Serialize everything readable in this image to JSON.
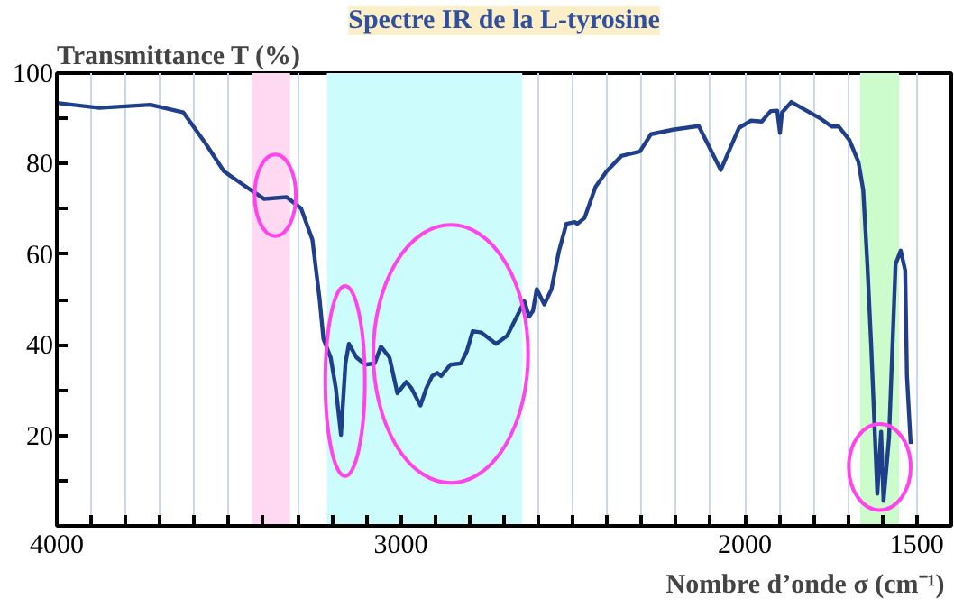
{
  "chart_data": {
    "type": "line",
    "title": "Spectre IR de la L-tyrosine",
    "xlabel": "Nombre d’onde σ  (cm⁻¹)",
    "ylabel": "Transmittance T (%)",
    "x": [
      4000,
      3876,
      3728,
      3632,
      3568,
      3514,
      3450,
      3397,
      3332,
      3290,
      3257,
      3236,
      3225,
      3204,
      3189,
      3174,
      3161,
      3151,
      3129,
      3103,
      3076,
      3058,
      3033,
      3010,
      2984,
      2969,
      2943,
      2926,
      2909,
      2894,
      2883,
      2856,
      2825,
      2808,
      2791,
      2766,
      2723,
      2691,
      2659,
      2641,
      2627,
      2616,
      2605,
      2583,
      2562,
      2541,
      2519,
      2494,
      2487,
      2466,
      2434,
      2402,
      2359,
      2305,
      2273,
      2209,
      2134,
      2070,
      2017,
      1982,
      1951,
      1925,
      1906,
      1898,
      1892,
      1865,
      1821,
      1779,
      1748,
      1727,
      1696,
      1670,
      1656,
      1644,
      1633,
      1621,
      1615,
      1604,
      1597,
      1581,
      1562,
      1547,
      1534,
      1529,
      1518
    ],
    "series": [
      {
        "color": "#1f3f8a",
        "values": [
          93.4,
          92.3,
          93.0,
          91.3,
          84.5,
          78.3,
          74.9,
          72.2,
          72.6,
          70.1,
          63.2,
          50,
          41.3,
          37.2,
          30.4,
          20.1,
          35.9,
          40.2,
          37.2,
          35.6,
          35.9,
          39.6,
          37.2,
          29.3,
          31.8,
          30.4,
          26.6,
          30.4,
          33.1,
          33.8,
          33.1,
          35.6,
          35.9,
          38.6,
          43.0,
          42.7,
          40.2,
          42.0,
          46.8,
          49.6,
          46.2,
          47.5,
          52.3,
          48.9,
          52.3,
          60.5,
          66.7,
          67.1,
          66.7,
          68.0,
          74.9,
          78.3,
          81.7,
          82.7,
          86.5,
          87.5,
          88.3,
          78.6,
          87.9,
          89.5,
          89.3,
          91.6,
          91.7,
          86.8,
          91.3,
          93.6,
          91.7,
          89.9,
          88.2,
          88.2,
          85.2,
          80.4,
          74.2,
          57.8,
          40.0,
          18.1,
          7.1,
          20.8,
          5.5,
          19.5,
          57.8,
          60.8,
          56.4,
          33.1,
          18.1
        ]
      }
    ],
    "xlim": [
      4000,
      1400
    ],
    "xticks": [
      4000,
      {
        "value": 3900,
        "label": null
      },
      {
        "value": 3800,
        "label": null
      },
      {
        "value": 3700,
        "label": null
      },
      {
        "value": 3600,
        "label": null
      },
      {
        "value": 3500,
        "label": null
      },
      {
        "value": 3400,
        "label": null
      },
      {
        "value": 3300,
        "label": null
      },
      {
        "value": 3200,
        "label": null
      },
      {
        "value": 3100,
        "label": null
      },
      3000,
      {
        "value": 2900,
        "label": null
      },
      {
        "value": 2800,
        "label": null
      },
      {
        "value": 2700,
        "label": null
      },
      {
        "value": 2600,
        "label": null
      },
      {
        "value": 2500,
        "label": null
      },
      {
        "value": 2400,
        "label": null
      },
      {
        "value": 2300,
        "label": null
      },
      {
        "value": 2200,
        "label": null
      },
      {
        "value": 2100,
        "label": null
      },
      2000,
      {
        "value": 1900,
        "label": null
      },
      {
        "value": 1800,
        "label": null
      },
      {
        "value": 1700,
        "label": null
      },
      {
        "value": 1600,
        "label": null
      },
      1500
    ],
    "ylim": [
      0,
      100
    ],
    "yticks": [
      {
        "value": 10,
        "label": null
      },
      20,
      {
        "value": 30,
        "label": null
      },
      40,
      {
        "value": 50,
        "label": null
      },
      60,
      {
        "value": 70,
        "label": null
      },
      80,
      {
        "value": 90,
        "label": null
      },
      100
    ],
    "grid": "x",
    "line_style": "solid",
    "bands": [
      {
        "axis": "x",
        "from": 3433,
        "to": 3322,
        "color": "#ffd9f2"
      },
      {
        "axis": "x",
        "from": 3215,
        "to": 2647,
        "color": "#ccfcfc"
      },
      {
        "axis": "x",
        "from": 1665,
        "to": 1552,
        "color": "#ccfccc"
      }
    ]
  }
}
